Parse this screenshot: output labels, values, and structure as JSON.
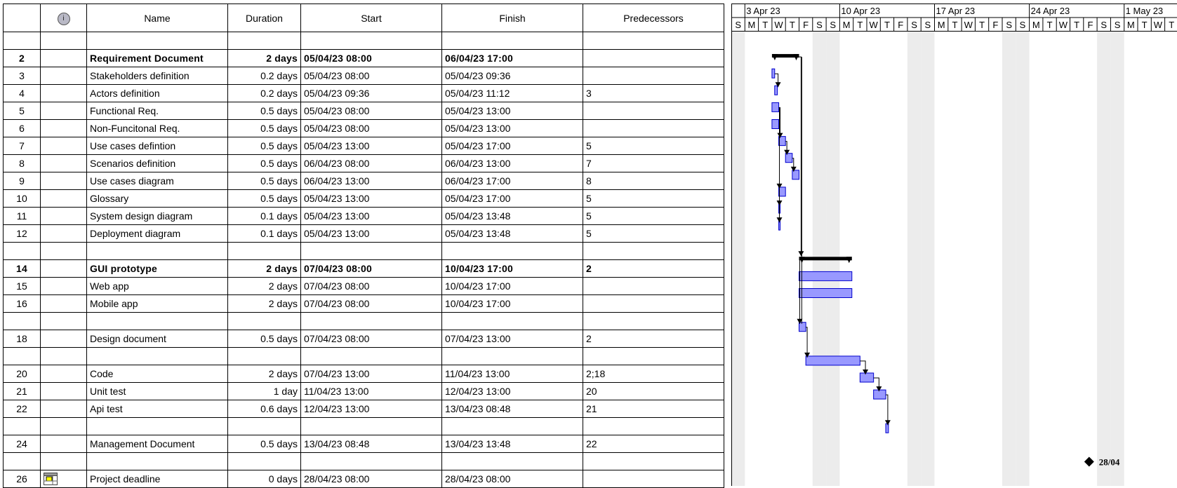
{
  "columns": {
    "info_icon": "info-icon",
    "name": "Name",
    "duration": "Duration",
    "start": "Start",
    "finish": "Finish",
    "predecessors": "Predecessors"
  },
  "rows": [
    {
      "id": "",
      "name": "",
      "duration": "",
      "start": "",
      "finish": "",
      "pred": "",
      "summary": false,
      "level": 0
    },
    {
      "id": "2",
      "name": "Requirement Document",
      "duration": "2 days",
      "start": "05/04/23 08:00",
      "finish": "06/04/23 17:00",
      "pred": "",
      "summary": true,
      "level": 0
    },
    {
      "id": "3",
      "name": "Stakeholders definition",
      "duration": "0.2 days",
      "start": "05/04/23 08:00",
      "finish": "05/04/23 09:36",
      "pred": "",
      "summary": false,
      "level": 1
    },
    {
      "id": "4",
      "name": "Actors definition",
      "duration": "0.2 days",
      "start": "05/04/23 09:36",
      "finish": "05/04/23 11:12",
      "pred": "3",
      "summary": false,
      "level": 1
    },
    {
      "id": "5",
      "name": "Functional Req.",
      "duration": "0.5 days",
      "start": "05/04/23 08:00",
      "finish": "05/04/23 13:00",
      "pred": "",
      "summary": false,
      "level": 1
    },
    {
      "id": "6",
      "name": "Non-Funcitonal Req.",
      "duration": "0.5 days",
      "start": "05/04/23 08:00",
      "finish": "05/04/23 13:00",
      "pred": "",
      "summary": false,
      "level": 1
    },
    {
      "id": "7",
      "name": "Use cases defintion",
      "duration": "0.5 days",
      "start": "05/04/23 13:00",
      "finish": "05/04/23 17:00",
      "pred": "5",
      "summary": false,
      "level": 1
    },
    {
      "id": "8",
      "name": "Scenarios definition",
      "duration": "0.5 days",
      "start": "06/04/23 08:00",
      "finish": "06/04/23 13:00",
      "pred": "7",
      "summary": false,
      "level": 1
    },
    {
      "id": "9",
      "name": "Use cases diagram",
      "duration": "0.5 days",
      "start": "06/04/23 13:00",
      "finish": "06/04/23 17:00",
      "pred": "8",
      "summary": false,
      "level": 1
    },
    {
      "id": "10",
      "name": "Glossary",
      "duration": "0.5 days",
      "start": "05/04/23 13:00",
      "finish": "05/04/23 17:00",
      "pred": "5",
      "summary": false,
      "level": 1
    },
    {
      "id": "11",
      "name": "System design diagram",
      "duration": "0.1 days",
      "start": "05/04/23 13:00",
      "finish": "05/04/23 13:48",
      "pred": "5",
      "summary": false,
      "level": 1
    },
    {
      "id": "12",
      "name": "Deployment diagram",
      "duration": "0.1 days",
      "start": "05/04/23 13:00",
      "finish": "05/04/23 13:48",
      "pred": "5",
      "summary": false,
      "level": 1
    },
    {
      "id": "",
      "name": "",
      "duration": "",
      "start": "",
      "finish": "",
      "pred": "",
      "summary": false,
      "level": 0
    },
    {
      "id": "14",
      "name": "GUI prototype",
      "duration": "2 days",
      "start": "07/04/23 08:00",
      "finish": "10/04/23 17:00",
      "pred": "2",
      "summary": true,
      "level": 0
    },
    {
      "id": "15",
      "name": "Web app",
      "duration": "2 days",
      "start": "07/04/23 08:00",
      "finish": "10/04/23 17:00",
      "pred": "",
      "summary": false,
      "level": 1
    },
    {
      "id": "16",
      "name": "Mobile app",
      "duration": "2 days",
      "start": "07/04/23 08:00",
      "finish": "10/04/23 17:00",
      "pred": "",
      "summary": false,
      "level": 1
    },
    {
      "id": "",
      "name": "",
      "duration": "",
      "start": "",
      "finish": "",
      "pred": "",
      "summary": false,
      "level": 0
    },
    {
      "id": "18",
      "name": "Design document",
      "duration": "0.5 days",
      "start": "07/04/23 08:00",
      "finish": "07/04/23 13:00",
      "pred": "2",
      "summary": false,
      "level": 0
    },
    {
      "id": "",
      "name": "",
      "duration": "",
      "start": "",
      "finish": "",
      "pred": "",
      "summary": false,
      "level": 0
    },
    {
      "id": "20",
      "name": "Code",
      "duration": "2 days",
      "start": "07/04/23 13:00",
      "finish": "11/04/23 13:00",
      "pred": "2;18",
      "summary": false,
      "level": 0
    },
    {
      "id": "21",
      "name": "Unit test",
      "duration": "1 day",
      "start": "11/04/23 13:00",
      "finish": "12/04/23 13:00",
      "pred": "20",
      "summary": false,
      "level": 0
    },
    {
      "id": "22",
      "name": "Api test",
      "duration": "0.6 days",
      "start": "12/04/23 13:00",
      "finish": "13/04/23 08:48",
      "pred": "21",
      "summary": false,
      "level": 0
    },
    {
      "id": "",
      "name": "",
      "duration": "",
      "start": "",
      "finish": "",
      "pred": "",
      "summary": false,
      "level": 0
    },
    {
      "id": "24",
      "name": "Management Document",
      "duration": "0.5 days",
      "start": "13/04/23 08:48",
      "finish": "13/04/23 13:48",
      "pred": "22",
      "summary": false,
      "level": 0
    },
    {
      "id": "",
      "name": "",
      "duration": "",
      "start": "",
      "finish": "",
      "pred": "",
      "summary": false,
      "level": 0
    },
    {
      "id": "26",
      "name": "Project deadline",
      "duration": "0 days",
      "start": "28/04/23 08:00",
      "finish": "28/04/23 08:00",
      "pred": "",
      "summary": false,
      "level": 0,
      "icon": "calendar-icon"
    }
  ],
  "timescale": {
    "weeks": [
      "3 Apr 23",
      "10 Apr 23",
      "17 Apr 23",
      "24 Apr 23",
      "1 May 23"
    ],
    "days": [
      "S",
      "M",
      "T",
      "W",
      "T",
      "F",
      "S",
      "S",
      "M",
      "T",
      "W",
      "T",
      "F",
      "S",
      "S",
      "M",
      "T",
      "W",
      "T",
      "F",
      "S",
      "S",
      "M",
      "T",
      "W",
      "T",
      "F",
      "S",
      "S",
      "M",
      "T",
      "W",
      "T"
    ]
  },
  "gantt": {
    "bars": [
      {
        "row": 1,
        "type": "summary",
        "start_day": 3.0,
        "end_day": 5.0
      },
      {
        "row": 2,
        "type": "task",
        "start_day": 3.0,
        "end_day": 3.2
      },
      {
        "row": 3,
        "type": "task",
        "start_day": 3.2,
        "end_day": 3.4
      },
      {
        "row": 4,
        "type": "task",
        "start_day": 3.0,
        "end_day": 3.5
      },
      {
        "row": 5,
        "type": "task",
        "start_day": 3.0,
        "end_day": 3.5
      },
      {
        "row": 6,
        "type": "task",
        "start_day": 3.5,
        "end_day": 4.0
      },
      {
        "row": 7,
        "type": "task",
        "start_day": 4.0,
        "end_day": 4.5
      },
      {
        "row": 8,
        "type": "task",
        "start_day": 4.5,
        "end_day": 5.0
      },
      {
        "row": 9,
        "type": "task",
        "start_day": 3.5,
        "end_day": 4.0
      },
      {
        "row": 10,
        "type": "task",
        "start_day": 3.5,
        "end_day": 3.6
      },
      {
        "row": 11,
        "type": "task",
        "start_day": 3.5,
        "end_day": 3.6
      },
      {
        "row": 13,
        "type": "summary",
        "start_day": 5.0,
        "end_day": 8.9
      },
      {
        "row": 14,
        "type": "task",
        "start_day": 5.0,
        "end_day": 8.9
      },
      {
        "row": 15,
        "type": "task",
        "start_day": 5.0,
        "end_day": 8.9
      },
      {
        "row": 17,
        "type": "task",
        "start_day": 5.0,
        "end_day": 5.5
      },
      {
        "row": 19,
        "type": "task",
        "start_day": 5.5,
        "end_day": 9.5
      },
      {
        "row": 20,
        "type": "task",
        "start_day": 9.5,
        "end_day": 10.5
      },
      {
        "row": 21,
        "type": "task",
        "start_day": 10.5,
        "end_day": 11.4
      },
      {
        "row": 23,
        "type": "task",
        "start_day": 11.4,
        "end_day": 11.6
      }
    ],
    "milestone": {
      "row": 25,
      "day": 26.0,
      "label": "28/04"
    },
    "colors": {
      "bar_fill": "#9999ff",
      "bar_stroke": "#0000cc",
      "summary": "#000000",
      "weekend": "#ececec",
      "arrow": "#000000"
    }
  }
}
